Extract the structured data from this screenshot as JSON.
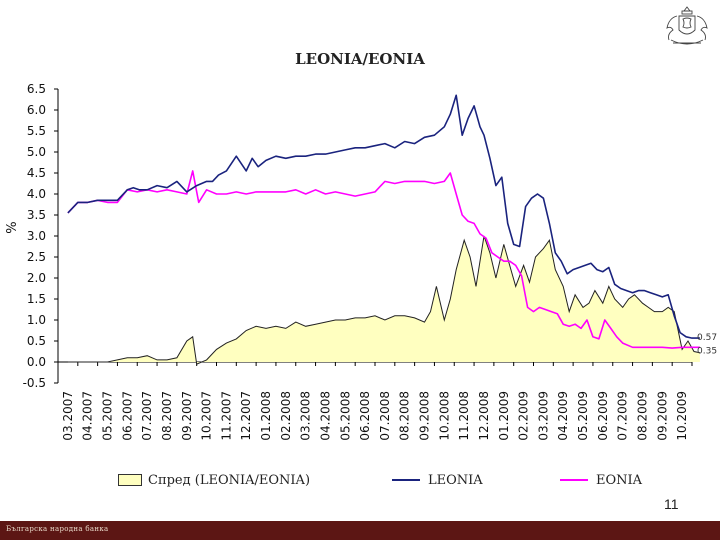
{
  "header": {
    "title": "LEONIA/EONIA"
  },
  "page_number": "11",
  "footer": {
    "text": "Българска народна банка"
  },
  "chart_data": {
    "type": "line",
    "title": "LEONIA/EONIA",
    "ylabel": "%",
    "xlabel": "",
    "ylim": [
      -0.5,
      6.5
    ],
    "yticks": [
      "-0.5",
      "0.0",
      "0.5",
      "1.0",
      "1.5",
      "2.0",
      "2.5",
      "3.0",
      "3.5",
      "4.0",
      "4.5",
      "5.0",
      "5.5",
      "6.0",
      "6.5"
    ],
    "categories": [
      "03.2007",
      "04.2007",
      "05.2007",
      "06.2007",
      "07.2007",
      "08.2007",
      "09.2007",
      "10.2007",
      "11.2007",
      "12.2007",
      "01.2008",
      "02.2008",
      "03.2008",
      "04.2008",
      "05.2008",
      "06.2008",
      "07.2008",
      "08.2008",
      "09.2008",
      "10.2008",
      "11.2008",
      "12.2008",
      "01.2009",
      "02.2009",
      "03.2009",
      "04.2009",
      "05.2009",
      "06.2009",
      "07.2009",
      "08.2009",
      "09.2009",
      "10.2009"
    ],
    "grid": false,
    "legend_position": "bottom",
    "colors": {
      "spread_fill": "#ffffc0",
      "spread_line": "#222222",
      "leonia": "#1a237e",
      "eonia": "#ff00ff"
    },
    "end_labels": [
      "0.57",
      "0.35"
    ],
    "series": [
      {
        "name": "Спред (LEONIA/EONIA)",
        "kind": "area",
        "x": [
          0,
          0.5,
          1,
          1.5,
          2,
          2.5,
          3,
          3.5,
          4,
          4.5,
          5,
          5.5,
          6,
          6.3,
          6.5,
          7,
          7.5,
          8,
          8.5,
          9,
          9.5,
          10,
          10.5,
          11,
          11.5,
          12,
          12.5,
          13,
          13.5,
          14,
          14.5,
          15,
          15.5,
          16,
          16.5,
          17,
          17.5,
          18,
          18.3,
          18.6,
          19,
          19.3,
          19.6,
          20,
          20.3,
          20.6,
          21,
          21.3,
          21.6,
          22,
          22.3,
          22.6,
          23,
          23.3,
          23.6,
          24,
          24.3,
          24.6,
          25,
          25.3,
          25.6,
          26,
          26.3,
          26.6,
          27,
          27.3,
          27.6,
          28,
          28.3,
          28.6,
          29,
          29.3,
          29.6,
          30,
          30.3,
          30.6,
          31,
          31.3,
          31.6,
          31.9
        ],
        "y": [
          0.0,
          0.0,
          0.0,
          0.0,
          0.0,
          0.05,
          0.1,
          0.1,
          0.15,
          0.05,
          0.05,
          0.1,
          0.5,
          0.6,
          -0.05,
          0.05,
          0.3,
          0.45,
          0.55,
          0.75,
          0.85,
          0.8,
          0.85,
          0.8,
          0.95,
          0.85,
          0.9,
          0.95,
          1.0,
          1.0,
          1.05,
          1.05,
          1.1,
          1.0,
          1.1,
          1.1,
          1.05,
          0.95,
          1.2,
          1.8,
          1.0,
          1.5,
          2.2,
          2.9,
          2.5,
          1.8,
          3.0,
          2.6,
          2.0,
          2.8,
          2.3,
          1.8,
          2.3,
          1.9,
          2.5,
          2.7,
          2.9,
          2.2,
          1.8,
          1.2,
          1.6,
          1.3,
          1.4,
          1.7,
          1.4,
          1.8,
          1.5,
          1.3,
          1.5,
          1.6,
          1.4,
          1.3,
          1.2,
          1.2,
          1.3,
          1.2,
          0.3,
          0.5,
          0.25,
          0.22
        ]
      },
      {
        "name": "LEONIA",
        "kind": "line",
        "x": [
          0,
          0.5,
          1,
          1.5,
          2,
          2.5,
          3,
          3.3,
          3.6,
          4,
          4.5,
          5,
          5.5,
          6,
          6.5,
          7,
          7.3,
          7.6,
          8,
          8.5,
          9,
          9.3,
          9.6,
          10,
          10.5,
          11,
          11.5,
          12,
          12.5,
          13,
          13.5,
          14,
          14.5,
          15,
          15.5,
          16,
          16.5,
          17,
          17.5,
          18,
          18.5,
          19,
          19.3,
          19.6,
          19.9,
          20.2,
          20.5,
          20.8,
          21,
          21.3,
          21.6,
          21.9,
          22.2,
          22.5,
          22.8,
          23.1,
          23.4,
          23.7,
          24,
          24.3,
          24.6,
          24.9,
          25.2,
          25.5,
          25.8,
          26.1,
          26.4,
          26.7,
          27,
          27.3,
          27.6,
          27.9,
          28.2,
          28.5,
          28.8,
          29.1,
          29.4,
          29.7,
          30,
          30.3,
          30.6,
          30.9,
          31.2,
          31.5,
          31.9
        ],
        "y": [
          3.55,
          3.8,
          3.8,
          3.85,
          3.85,
          3.85,
          4.1,
          4.15,
          4.1,
          4.1,
          4.2,
          4.15,
          4.3,
          4.05,
          4.2,
          4.3,
          4.3,
          4.45,
          4.55,
          4.9,
          4.55,
          4.85,
          4.65,
          4.8,
          4.9,
          4.85,
          4.9,
          4.9,
          4.95,
          4.95,
          5.0,
          5.05,
          5.1,
          5.1,
          5.15,
          5.2,
          5.1,
          5.25,
          5.2,
          5.35,
          5.4,
          5.6,
          5.9,
          6.35,
          5.4,
          5.8,
          6.1,
          5.6,
          5.4,
          4.85,
          4.2,
          4.4,
          3.3,
          2.8,
          2.75,
          3.7,
          3.9,
          4.0,
          3.9,
          3.3,
          2.6,
          2.4,
          2.1,
          2.2,
          2.25,
          2.3,
          2.35,
          2.2,
          2.15,
          2.25,
          1.85,
          1.75,
          1.7,
          1.65,
          1.7,
          1.7,
          1.65,
          1.6,
          1.55,
          1.6,
          1.1,
          0.7,
          0.6,
          0.57,
          0.57
        ]
      },
      {
        "name": "EONIA",
        "kind": "line",
        "x": [
          0,
          0.5,
          1,
          1.5,
          2,
          2.5,
          3,
          3.5,
          4,
          4.5,
          5,
          5.5,
          6,
          6.3,
          6.6,
          7,
          7.5,
          8,
          8.5,
          9,
          9.5,
          10,
          10.5,
          11,
          11.5,
          12,
          12.5,
          13,
          13.5,
          14,
          14.5,
          15,
          15.5,
          16,
          16.5,
          17,
          17.5,
          18,
          18.5,
          19,
          19.3,
          19.6,
          19.9,
          20.2,
          20.5,
          20.8,
          21.1,
          21.4,
          21.7,
          22,
          22.3,
          22.6,
          22.9,
          23.2,
          23.5,
          23.8,
          24.1,
          24.4,
          24.7,
          25,
          25.3,
          25.6,
          25.9,
          26.2,
          26.5,
          26.8,
          27.1,
          27.4,
          27.7,
          28,
          28.5,
          29,
          29.5,
          30,
          30.5,
          31,
          31.5,
          31.9
        ],
        "y": [
          3.55,
          3.8,
          3.8,
          3.85,
          3.8,
          3.8,
          4.1,
          4.05,
          4.1,
          4.05,
          4.1,
          4.05,
          4.0,
          4.55,
          3.8,
          4.1,
          4.0,
          4.0,
          4.05,
          4.0,
          4.05,
          4.05,
          4.05,
          4.05,
          4.1,
          4.0,
          4.1,
          4.0,
          4.05,
          4.0,
          3.95,
          4.0,
          4.05,
          4.3,
          4.25,
          4.3,
          4.3,
          4.3,
          4.25,
          4.3,
          4.5,
          4.0,
          3.5,
          3.35,
          3.3,
          3.05,
          2.95,
          2.6,
          2.5,
          2.4,
          2.4,
          2.3,
          2.05,
          1.3,
          1.2,
          1.3,
          1.25,
          1.2,
          1.15,
          0.9,
          0.85,
          0.9,
          0.8,
          1.0,
          0.6,
          0.55,
          1.0,
          0.8,
          0.6,
          0.45,
          0.35,
          0.35,
          0.35,
          0.35,
          0.33,
          0.35,
          0.35,
          0.35
        ]
      }
    ]
  }
}
